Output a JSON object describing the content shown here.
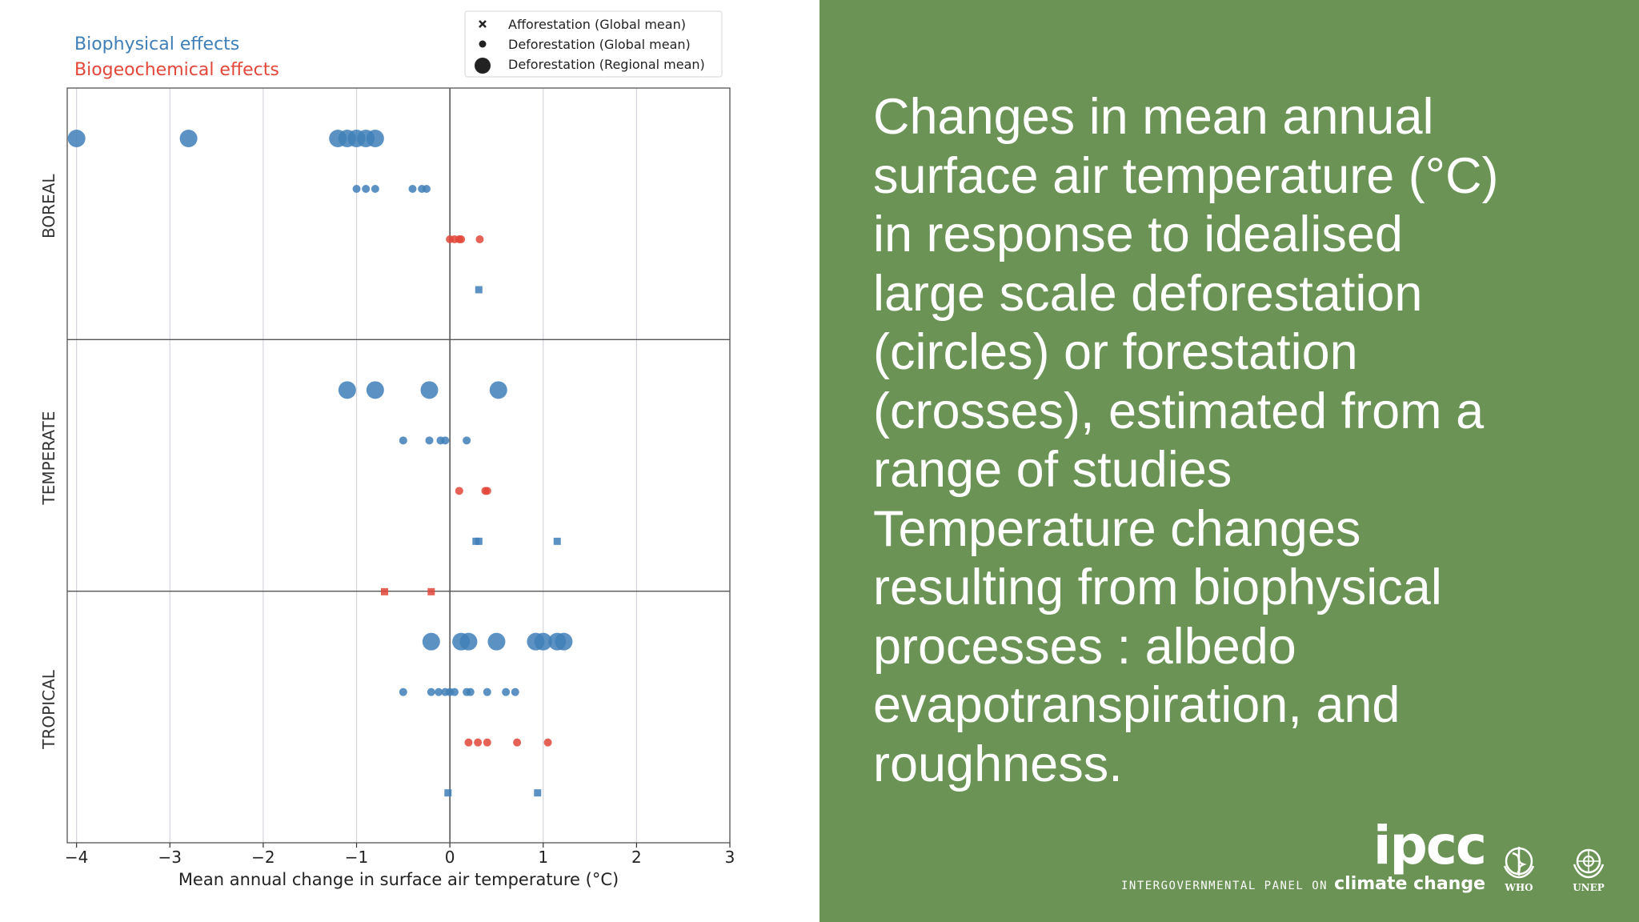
{
  "chart_data": {
    "type": "scatter",
    "xlabel": "Mean annual change in surface air temperature (°C)",
    "xlim": [
      -4.1,
      3.0
    ],
    "xticks": [
      "−4",
      "−3",
      "−2",
      "−1",
      "0",
      "1",
      "2",
      "3"
    ],
    "xtick_values": [
      -4,
      -3,
      -2,
      -1,
      0,
      1,
      2,
      3
    ],
    "grid": true,
    "effect_legend": [
      {
        "label": "Biophysical effects",
        "color": "#3f7fb8"
      },
      {
        "label": "Biogeochemical effects",
        "color": "#e2473a"
      }
    ],
    "marker_legend": [
      {
        "label": "Afforestation (Global mean)",
        "marker": "x-small"
      },
      {
        "label": "Deforestation (Global mean)",
        "marker": "circle-small"
      },
      {
        "label": "Deforestation (Regional mean)",
        "marker": "circle-large"
      }
    ],
    "legend_position": "top-right",
    "colors": {
      "biophysical": "#3f7fb8",
      "biogeochemical": "#e2473a"
    },
    "panels": [
      {
        "name": "BOREAL",
        "rows": [
          {
            "effect": "biophysical",
            "marker": "circle-large",
            "values": [
              -4.0,
              -2.8,
              -1.2,
              -1.1,
              -1.0,
              -0.9,
              -0.8
            ]
          },
          {
            "effect": "biophysical",
            "marker": "circle-small",
            "values": [
              -1.0,
              -0.9,
              -0.8,
              -0.4,
              -0.3,
              -0.25
            ]
          },
          {
            "effect": "biogeochemical",
            "marker": "circle-small",
            "values": [
              0.0,
              0.05,
              0.1,
              0.12,
              0.32
            ]
          },
          {
            "effect": "biophysical",
            "marker": "x-small",
            "values": [
              0.31
            ]
          }
        ]
      },
      {
        "name": "TEMPERATE",
        "rows": [
          {
            "effect": "biophysical",
            "marker": "circle-large",
            "values": [
              -1.1,
              -0.8,
              -0.22,
              0.52
            ]
          },
          {
            "effect": "biophysical",
            "marker": "circle-small",
            "values": [
              -0.5,
              -0.22,
              -0.1,
              -0.05,
              0.18
            ]
          },
          {
            "effect": "biogeochemical",
            "marker": "circle-small",
            "values": [
              0.1,
              0.38,
              0.4
            ]
          },
          {
            "effect": "biophysical",
            "marker": "x-small",
            "values": [
              0.28,
              0.31,
              1.15
            ]
          },
          {
            "effect": "biogeochemical",
            "marker": "x-small",
            "values": [
              -0.7,
              -0.2
            ]
          }
        ]
      },
      {
        "name": "TROPICAL",
        "rows": [
          {
            "effect": "biophysical",
            "marker": "circle-large",
            "values": [
              -0.2,
              0.12,
              0.2,
              0.5,
              0.92,
              1.0,
              1.15,
              1.22
            ]
          },
          {
            "effect": "biophysical",
            "marker": "circle-small",
            "values": [
              -0.5,
              -0.2,
              -0.12,
              -0.05,
              0.0,
              0.05,
              0.18,
              0.22,
              0.4,
              0.6,
              0.7
            ]
          },
          {
            "effect": "biogeochemical",
            "marker": "circle-small",
            "values": [
              0.2,
              0.3,
              0.4,
              0.72,
              1.05
            ]
          },
          {
            "effect": "biophysical",
            "marker": "x-small",
            "values": [
              -0.02,
              0.94
            ]
          }
        ]
      }
    ]
  },
  "caption": {
    "lines": [
      "Changes in mean annual",
      "surface air temperature (°C)",
      "in response to idealised",
      "large scale deforestation",
      "(circles) or forestation",
      "(crosses), estimated from a",
      "range of studies",
      "Temperature changes",
      "resulting from biophysical",
      "processes :  albedo",
      "evapotranspiration, and",
      "roughness."
    ]
  },
  "logos": {
    "ipcc_word": "ipcc",
    "ipcc_panel_on": "INTERGOVERNMENTAL PANEL ON",
    "ipcc_climate_change": "climate change",
    "who": "WHO",
    "unep": "UNEP"
  },
  "palette": {
    "right_panel_bg": "#6b9355",
    "text": "#ffffff"
  }
}
